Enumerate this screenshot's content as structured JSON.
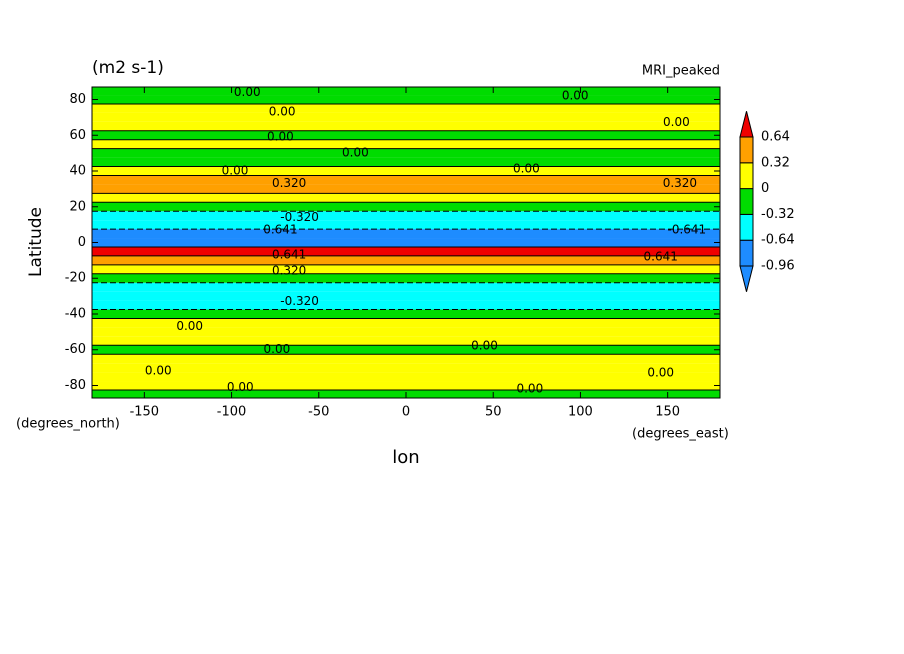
{
  "chart_data": {
    "type": "contour",
    "title": "(m2 s-1)",
    "subtitle": "MRI_peaked",
    "ylabel": "Latitude",
    "xlabel": "lon",
    "yunits": "(degrees_north)",
    "xunits": "(degrees_east)",
    "xlim": [
      -180,
      180
    ],
    "ylim": [
      -87,
      87
    ],
    "xticks": [
      -150,
      -100,
      -50,
      0,
      50,
      100,
      150
    ],
    "yticks": [
      -80,
      -60,
      -40,
      -20,
      0,
      20,
      40,
      60,
      80
    ],
    "lat": [
      -85,
      -80,
      -75,
      -70,
      -65,
      -60,
      -55,
      -50,
      -45,
      -40,
      -35,
      -30,
      -25,
      -20,
      -15,
      -10,
      -5,
      0,
      5,
      10,
      15,
      20,
      25,
      30,
      35,
      40,
      45,
      50,
      55,
      60,
      65,
      70,
      75,
      80,
      85
    ],
    "values": [
      -0.1,
      0.1,
      0.15,
      0.1,
      0.05,
      -0.1,
      0.1,
      0.15,
      0.05,
      -0.2,
      -0.4,
      -0.5,
      -0.4,
      -0.2,
      0.1,
      0.4,
      0.7,
      -0.8,
      -0.75,
      -0.5,
      -0.4,
      -0.1,
      0.2,
      0.45,
      0.4,
      0.15,
      -0.1,
      -0.15,
      0.1,
      -0.05,
      0.1,
      0.05,
      0.1,
      -0.1,
      -0.1
    ],
    "levels": [
      -0.96,
      -0.64,
      -0.32,
      0,
      0.32,
      0.64
    ],
    "colors": [
      "#1e8cff",
      "#1e8cff",
      "#00ffff",
      "#00dc00",
      "#ffff00",
      "#ffa000",
      "#f00000"
    ],
    "contour_labels": [
      {
        "x": -91,
        "y": 84,
        "value": 0,
        "label": "0.00"
      },
      {
        "x": -71,
        "y": 73,
        "value": 0,
        "label": "0.00"
      },
      {
        "x": 97,
        "y": 82,
        "value": 0,
        "label": "0.00"
      },
      {
        "x": -72,
        "y": 59,
        "value": 0,
        "label": "0.00"
      },
      {
        "x": 155,
        "y": 67,
        "value": 0,
        "label": "0.00"
      },
      {
        "x": -29,
        "y": 50,
        "value": 0,
        "label": "0.00"
      },
      {
        "x": -98,
        "y": 40,
        "value": 0,
        "label": "0.00"
      },
      {
        "x": 69,
        "y": 41,
        "value": 0,
        "label": "0.00"
      },
      {
        "x": -67,
        "y": 33,
        "value": 0.32,
        "label": "0.320"
      },
      {
        "x": 157,
        "y": 33,
        "value": 0.32,
        "label": "0.320"
      },
      {
        "x": -61,
        "y": 14,
        "value": -0.32,
        "label": "-0.320"
      },
      {
        "x": -72,
        "y": 7,
        "value": 0.641,
        "label": "0.641"
      },
      {
        "x": 161,
        "y": 7,
        "value": -0.641,
        "label": "-0.641"
      },
      {
        "x": -67,
        "y": -7,
        "value": 0.641,
        "label": "0.641"
      },
      {
        "x": 146,
        "y": -8,
        "value": 0.641,
        "label": "0.641"
      },
      {
        "x": -67,
        "y": -16,
        "value": 0.32,
        "label": "0.320"
      },
      {
        "x": -61,
        "y": -33,
        "value": -0.32,
        "label": "-0.320"
      },
      {
        "x": -124,
        "y": -47,
        "value": 0,
        "label": "0.00"
      },
      {
        "x": -74,
        "y": -60,
        "value": 0,
        "label": "0.00"
      },
      {
        "x": 45,
        "y": -58,
        "value": 0,
        "label": "0.00"
      },
      {
        "x": -142,
        "y": -72,
        "value": 0,
        "label": "0.00"
      },
      {
        "x": 146,
        "y": -73,
        "value": 0,
        "label": "0.00"
      },
      {
        "x": -95,
        "y": -81,
        "value": 0,
        "label": "0.00"
      },
      {
        "x": 71,
        "y": -82,
        "value": 0,
        "label": "0.00"
      }
    ]
  }
}
